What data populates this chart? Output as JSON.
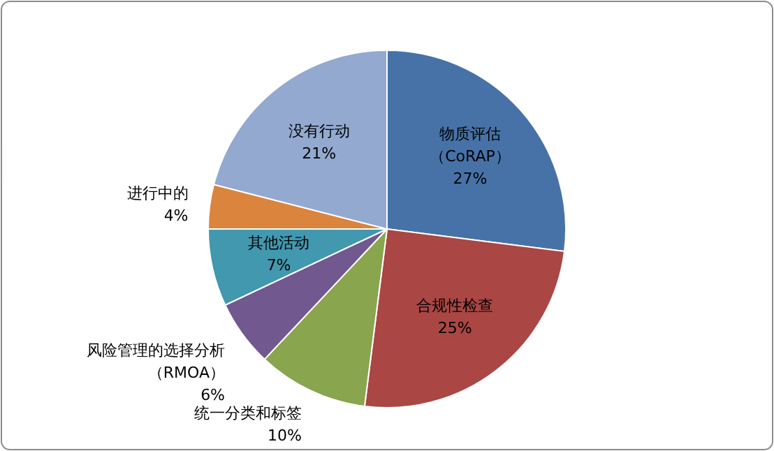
{
  "chart_data": {
    "type": "pie",
    "categories": [
      "物质评估（CoRAP）",
      "合规性检查",
      "统一分类和标签",
      "风险管理的选择分析（RMOA）",
      "其他活动",
      "进行中的",
      "没有行动"
    ],
    "values": [
      27,
      25,
      10,
      6,
      7,
      4,
      21
    ],
    "colors": [
      "#4672a8",
      "#aa4643",
      "#89a54e",
      "#71588f",
      "#4198af",
      "#db843d",
      "#93a9cf"
    ],
    "value_labels": [
      "27%",
      "25%",
      "10%",
      "6%",
      "7%",
      "4%",
      "21%"
    ]
  }
}
